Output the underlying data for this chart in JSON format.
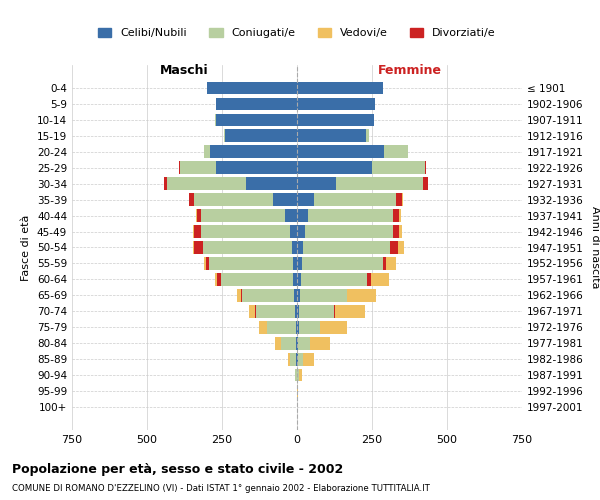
{
  "age_groups": [
    "0-4",
    "5-9",
    "10-14",
    "15-19",
    "20-24",
    "25-29",
    "30-34",
    "35-39",
    "40-44",
    "45-49",
    "50-54",
    "55-59",
    "60-64",
    "65-69",
    "70-74",
    "75-79",
    "80-84",
    "85-89",
    "90-94",
    "95-99",
    "100+"
  ],
  "birth_years": [
    "1997-2001",
    "1992-1996",
    "1987-1991",
    "1982-1986",
    "1977-1981",
    "1972-1976",
    "1967-1971",
    "1962-1966",
    "1957-1961",
    "1952-1956",
    "1947-1951",
    "1942-1946",
    "1937-1941",
    "1932-1936",
    "1927-1931",
    "1922-1926",
    "1917-1921",
    "1912-1916",
    "1907-1911",
    "1902-1906",
    "≤ 1901"
  ],
  "male": {
    "celibe": [
      300,
      270,
      270,
      240,
      290,
      270,
      170,
      80,
      40,
      25,
      18,
      15,
      12,
      10,
      8,
      5,
      4,
      2,
      1,
      0,
      0
    ],
    "coniugato": [
      0,
      1,
      2,
      5,
      20,
      120,
      265,
      265,
      280,
      295,
      295,
      280,
      240,
      175,
      130,
      95,
      50,
      20,
      5,
      1,
      0
    ],
    "vedovo": [
      0,
      0,
      0,
      0,
      0,
      0,
      0,
      0,
      1,
      2,
      3,
      5,
      8,
      15,
      20,
      25,
      20,
      8,
      2,
      0,
      0
    ],
    "divorziato": [
      0,
      0,
      0,
      0,
      0,
      3,
      10,
      15,
      15,
      25,
      30,
      10,
      15,
      1,
      1,
      1,
      1,
      0,
      0,
      0,
      0
    ]
  },
  "female": {
    "nubile": [
      285,
      260,
      255,
      230,
      290,
      250,
      130,
      55,
      35,
      25,
      20,
      15,
      12,
      10,
      8,
      5,
      3,
      2,
      1,
      0,
      0
    ],
    "coniugata": [
      0,
      0,
      2,
      10,
      80,
      175,
      290,
      275,
      285,
      295,
      290,
      270,
      220,
      155,
      115,
      70,
      40,
      18,
      5,
      1,
      0
    ],
    "vedova": [
      0,
      0,
      0,
      0,
      0,
      0,
      1,
      2,
      5,
      10,
      20,
      35,
      60,
      95,
      100,
      90,
      65,
      35,
      10,
      2,
      1
    ],
    "divorziata": [
      0,
      0,
      0,
      0,
      1,
      5,
      15,
      20,
      20,
      20,
      25,
      10,
      15,
      2,
      2,
      1,
      1,
      0,
      0,
      0,
      0
    ]
  },
  "colors": {
    "celibe": "#3a6ea8",
    "coniugato": "#b8cfa0",
    "vedovo": "#f0c060",
    "divorziato": "#cc2222"
  },
  "xlim": 750,
  "title": "Popolazione per età, sesso e stato civile - 2002",
  "subtitle": "COMUNE DI ROMANO D'EZZELINO (VI) - Dati ISTAT 1° gennaio 2002 - Elaborazione TUTTITALIA.IT",
  "ylabel_left": "Fasce di età",
  "ylabel_right": "Anni di nascita",
  "maschi_label": "Maschi",
  "femmine_label": "Femmine",
  "legend": [
    "Celibi/Nubili",
    "Coniugati/e",
    "Vedovi/e",
    "Divorziati/e"
  ],
  "xticks": [
    750,
    500,
    250,
    0,
    250,
    500,
    750
  ]
}
